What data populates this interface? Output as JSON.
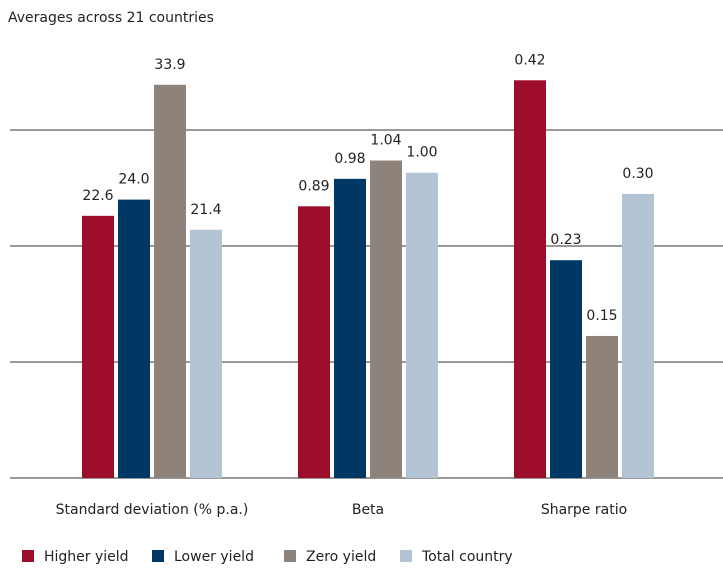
{
  "chart_data": {
    "type": "bar",
    "title": "Averages across 21 countries",
    "categories": [
      "Standard deviation (% p.a.)",
      "Beta",
      "Sharpe ratio"
    ],
    "group_ylims": [
      [
        0,
        40
      ],
      [
        0,
        1.52
      ],
      [
        0,
        0.49
      ]
    ],
    "yticks": [
      0,
      10,
      20,
      30
    ],
    "grid": true,
    "series": [
      {
        "name": "Higher yield",
        "color": "#9b0d2b",
        "values": [
          22.6,
          0.89,
          0.42
        ],
        "value_labels": [
          "22.6",
          "0.89",
          "0.42"
        ]
      },
      {
        "name": "Lower yield",
        "color": "#003865",
        "values": [
          24.0,
          0.98,
          0.23
        ],
        "value_labels": [
          "24.0",
          "0.98",
          "0.23"
        ]
      },
      {
        "name": "Zero yield",
        "color": "#8e837a",
        "values": [
          33.9,
          1.04,
          0.15
        ],
        "value_labels": [
          "33.9",
          "1.04",
          "0.15"
        ]
      },
      {
        "name": "Total country",
        "color": "#b3c3d3",
        "values": [
          21.4,
          1.0,
          0.3
        ],
        "value_labels": [
          "21.4",
          "1.00",
          "0.30"
        ]
      }
    ]
  }
}
